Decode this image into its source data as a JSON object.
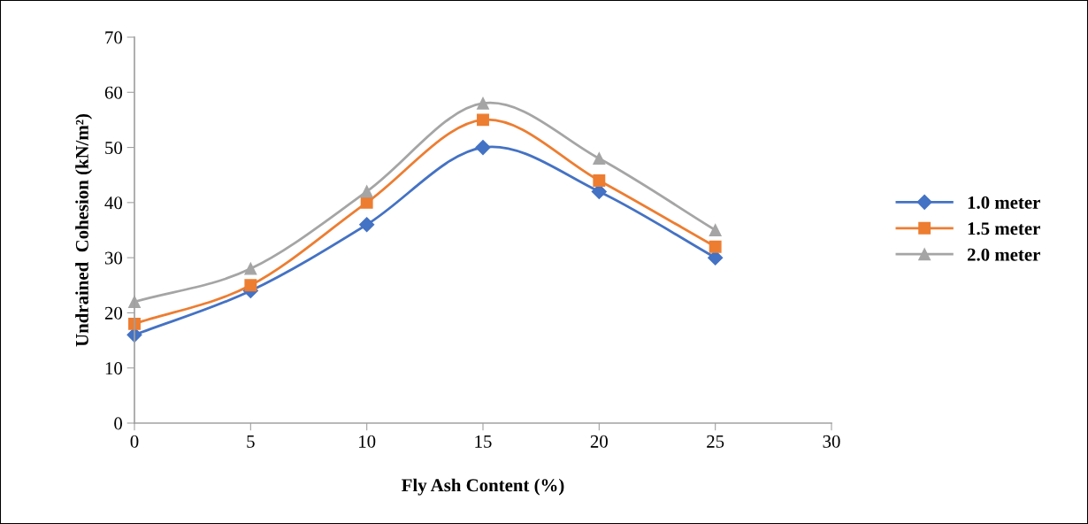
{
  "chart_data": {
    "type": "line",
    "xlabel": "Fly Ash Content (%)",
    "ylabel": "Undrained  Cohesion (kN/m²)",
    "x": [
      0,
      5,
      10,
      15,
      20,
      25
    ],
    "series": [
      {
        "name": "1.0 meter",
        "color": "#4472c4",
        "marker": "diamond",
        "values": [
          16,
          24,
          36,
          50,
          42,
          30
        ]
      },
      {
        "name": "1.5 meter",
        "color": "#ed7d31",
        "marker": "square",
        "values": [
          18,
          25,
          40,
          55,
          44,
          32
        ]
      },
      {
        "name": "2.0 meter",
        "color": "#a5a5a5",
        "marker": "triangle",
        "values": [
          22,
          28,
          42,
          58,
          48,
          35
        ]
      }
    ],
    "xlim": [
      0,
      30
    ],
    "xticks": [
      0,
      5,
      10,
      15,
      20,
      25,
      30
    ],
    "ylim": [
      0,
      70
    ],
    "yticks": [
      0,
      10,
      20,
      30,
      40,
      50,
      60,
      70
    ],
    "grid": false,
    "legend": "right",
    "line_style": "solid"
  }
}
